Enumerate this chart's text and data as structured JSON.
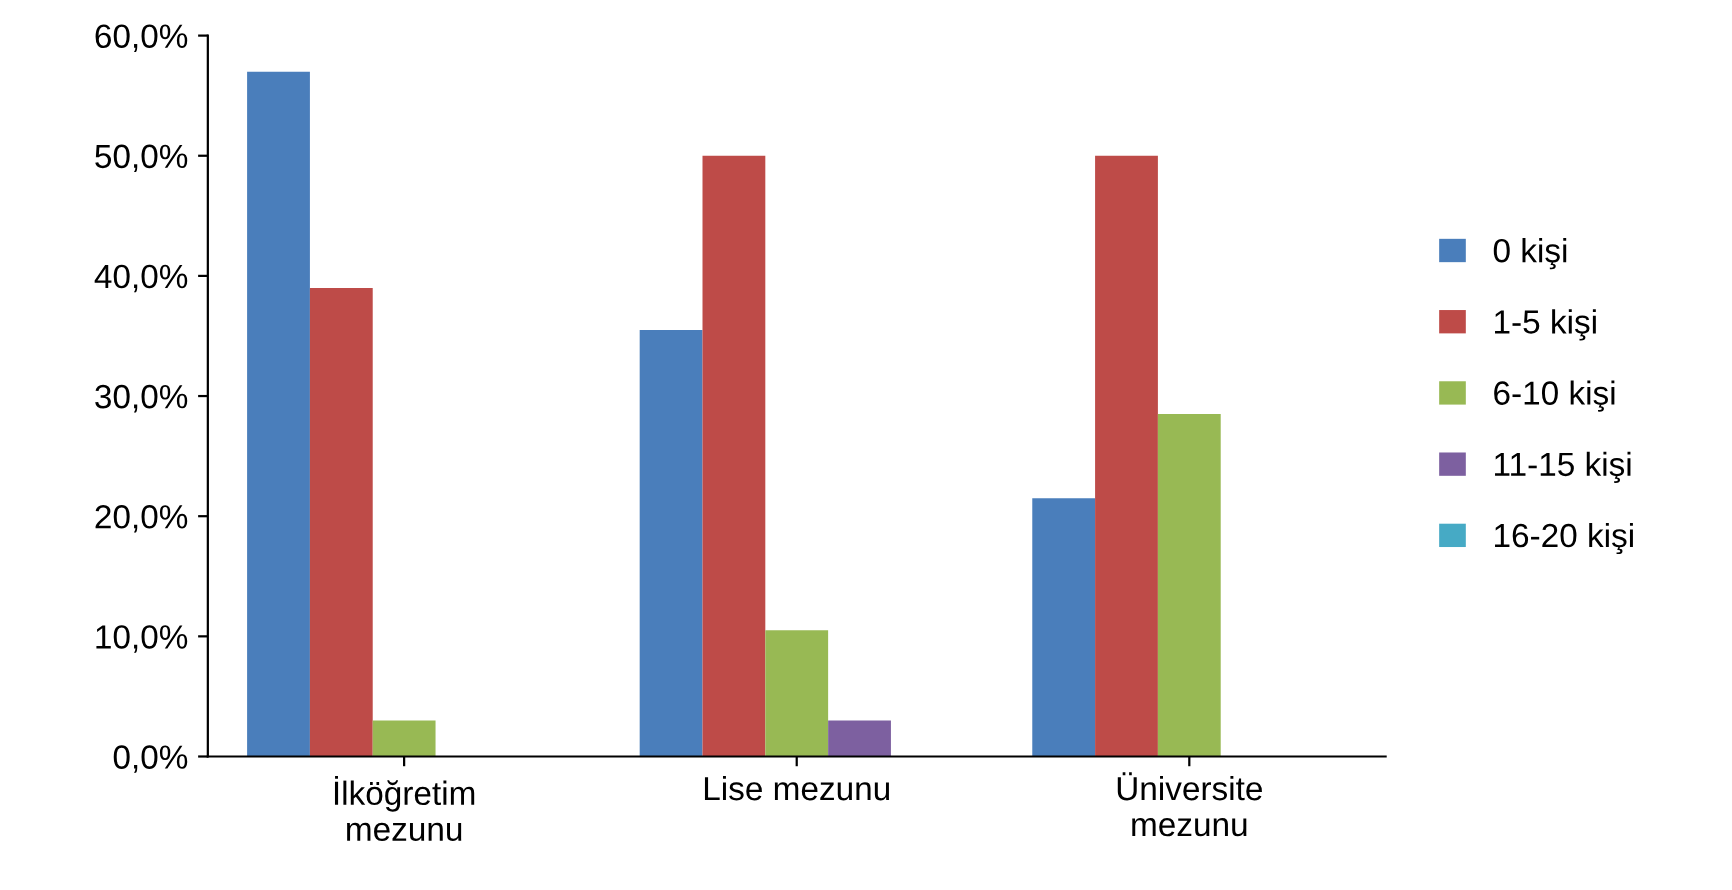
{
  "chart_data": {
    "type": "bar",
    "categories": [
      "İlköğretim\nmezunu",
      "Lise mezunu",
      "Üniversite\nmezunu"
    ],
    "series": [
      {
        "name": "0 kişi",
        "color": "#4a7ebb",
        "values": [
          57,
          35.5,
          21.5
        ]
      },
      {
        "name": "1-5 kişi",
        "color": "#be4b48",
        "values": [
          39,
          50,
          50
        ]
      },
      {
        "name": "6-10 kişi",
        "color": "#98b954",
        "values": [
          3,
          10.5,
          28.5
        ]
      },
      {
        "name": "11-15 kişi",
        "color": "#7d60a0",
        "values": [
          0,
          3,
          0
        ]
      },
      {
        "name": "16-20 kişi",
        "color": "#46aac5",
        "values": [
          0,
          0,
          0
        ]
      }
    ],
    "ylim": [
      0,
      60
    ],
    "yticks": [
      {
        "value": 0,
        "label": "0,0%"
      },
      {
        "value": 10,
        "label": "10,0%"
      },
      {
        "value": 20,
        "label": "20,0%"
      },
      {
        "value": 30,
        "label": "30,0%"
      },
      {
        "value": 40,
        "label": "40,0%"
      },
      {
        "value": 50,
        "label": "50,0%"
      },
      {
        "value": 60,
        "label": "60,0%"
      }
    ],
    "grid": false,
    "legend": "right"
  }
}
